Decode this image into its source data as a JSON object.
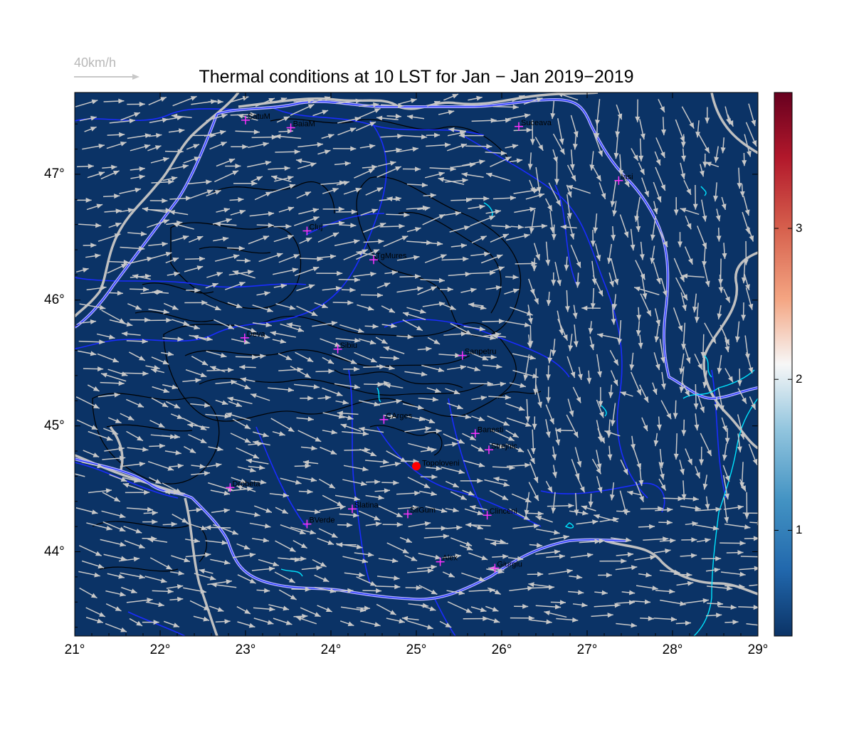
{
  "title": "Thermal conditions at 10 LST for Jan − Jan  2019−2019",
  "wind_legend": {
    "label": "40km/h"
  },
  "map": {
    "lon_range": [
      21,
      29
    ],
    "lat_range": [
      43.33,
      47.65
    ],
    "x_ticks": [
      "21°",
      "22°",
      "23°",
      "24°",
      "25°",
      "26°",
      "27°",
      "28°",
      "29°"
    ],
    "y_ticks": [
      "44°",
      "45°",
      "46°",
      "47°"
    ],
    "background_color": "#0b3366"
  },
  "colorbar": {
    "ticks": [
      "1",
      "2",
      "3"
    ],
    "range": [
      0.3,
      3.9
    ],
    "colors": [
      "#0b3366",
      "#2167ac",
      "#4393c3",
      "#92c5de",
      "#f7f7f7",
      "#f4a582",
      "#d6604d",
      "#b2182b",
      "#67001f"
    ]
  },
  "cities": [
    {
      "name": "SatuM",
      "lon": 23.0,
      "lat": 47.43
    },
    {
      "name": "BaiaM",
      "lon": 23.53,
      "lat": 47.37
    },
    {
      "name": "Suceava",
      "lon": 26.2,
      "lat": 47.38
    },
    {
      "name": "Iasi",
      "lon": 27.37,
      "lat": 46.95
    },
    {
      "name": "Cluj",
      "lon": 23.72,
      "lat": 46.55
    },
    {
      "name": "TgMures",
      "lon": 24.5,
      "lat": 46.32
    },
    {
      "name": "Deva",
      "lon": 22.99,
      "lat": 45.7
    },
    {
      "name": "Sibiu",
      "lon": 24.08,
      "lat": 45.61
    },
    {
      "name": "Sanpetru",
      "lon": 25.54,
      "lat": 45.56
    },
    {
      "name": "CArges",
      "lon": 24.62,
      "lat": 45.05
    },
    {
      "name": "Banesti",
      "lon": 25.69,
      "lat": 44.94
    },
    {
      "name": "Strejnic",
      "lon": 25.85,
      "lat": 44.81
    },
    {
      "name": "Drobeta",
      "lon": 22.82,
      "lat": 44.51
    },
    {
      "name": "Slatina",
      "lon": 24.25,
      "lat": 44.34
    },
    {
      "name": "SilGum",
      "lon": 24.9,
      "lat": 44.3
    },
    {
      "name": "Clinceni",
      "lon": 25.83,
      "lat": 44.29
    },
    {
      "name": "BVerde",
      "lon": 23.72,
      "lat": 44.22
    },
    {
      "name": "Alex",
      "lon": 25.28,
      "lat": 43.92
    },
    {
      "name": "Giurgiu",
      "lon": 25.92,
      "lat": 43.87
    }
  ],
  "highlight_site": {
    "name": "Topoloveni",
    "lon": 25.0,
    "lat": 44.68
  }
}
